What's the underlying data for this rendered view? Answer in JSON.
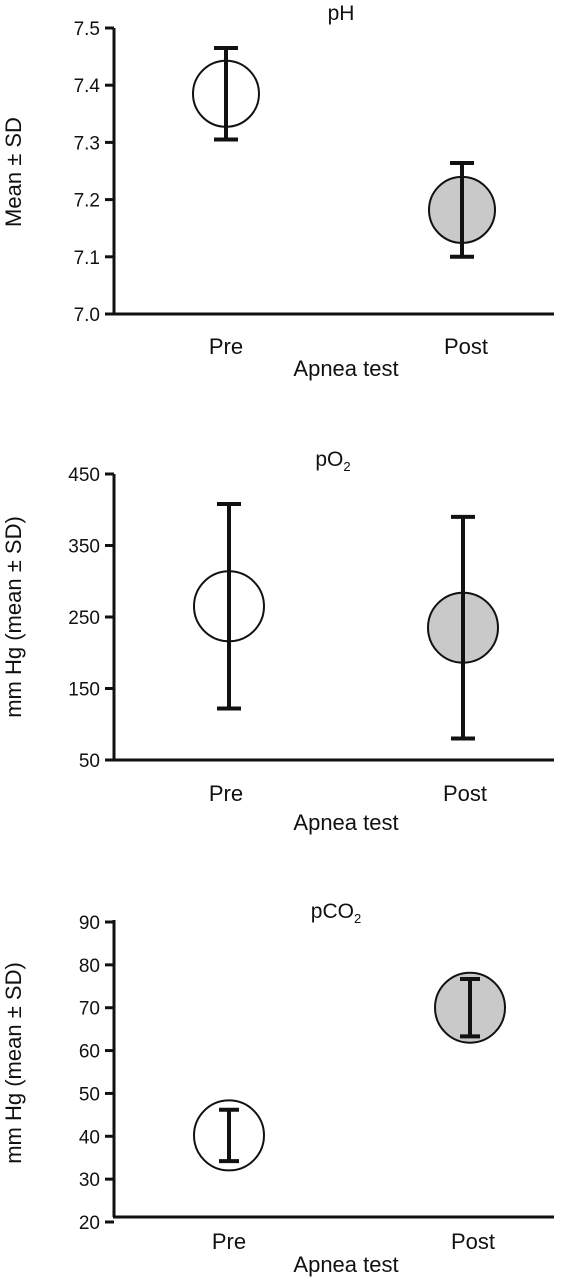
{
  "chart_data": [
    {
      "type": "scatter",
      "title": "pH",
      "ylabel": "Mean ± SD",
      "xlabel": "Apnea test",
      "categories": [
        "Pre",
        "Post"
      ],
      "ylim": [
        7.0,
        7.5
      ],
      "yticks": [
        "7.0",
        "7.1",
        "7.2",
        "7.3",
        "7.4",
        "7.5"
      ],
      "series": [
        {
          "values": [
            7.385,
            7.182
          ],
          "sd": [
            0.08,
            0.082
          ]
        }
      ],
      "marker_fill": [
        "#ffffff",
        "#c9c9c9"
      ],
      "grid": false
    },
    {
      "type": "scatter",
      "title": "pO",
      "title_sub": "2",
      "ylabel": "mm Hg (mean ± SD)",
      "xlabel": "Apnea test",
      "categories": [
        "Pre",
        "Post"
      ],
      "ylim": [
        50,
        450
      ],
      "yticks": [
        "50",
        "150",
        "250",
        "350",
        "450"
      ],
      "series": [
        {
          "values": [
            265,
            235
          ],
          "sd": [
            143,
            155
          ]
        }
      ],
      "marker_fill": [
        "#ffffff",
        "#c9c9c9"
      ],
      "grid": false
    },
    {
      "type": "scatter",
      "title": "pCO",
      "title_sub": "2",
      "ylabel": "mm Hg (mean ± SD)",
      "xlabel": "Apnea test",
      "categories": [
        "Pre",
        "Post"
      ],
      "ylim": [
        20,
        90
      ],
      "yticks": [
        "20",
        "30",
        "40",
        "50",
        "60",
        "70",
        "80",
        "90"
      ],
      "series": [
        {
          "values": [
            40.2,
            70.0
          ],
          "sd": [
            6,
            6.7
          ]
        }
      ],
      "marker_fill": [
        "#ffffff",
        "#c9c9c9"
      ],
      "grid": false
    }
  ]
}
